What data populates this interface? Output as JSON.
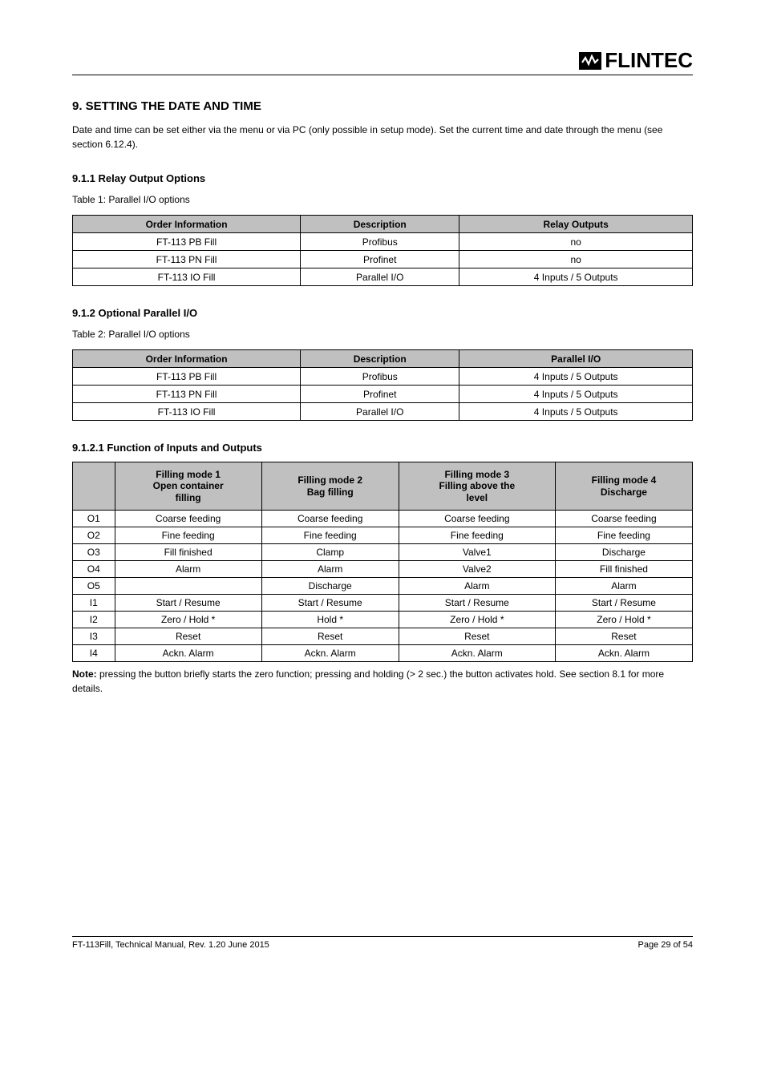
{
  "logo": {
    "text": "FLINTEC"
  },
  "section1": {
    "heading": "9. SETTING THE DATE AND TIME",
    "body": "Date and time can be set either via the menu or via PC (only possible in setup mode). Set the current time and date through the menu (see section 6.12.4)."
  },
  "section2": {
    "heading": "9.1.1 Relay Output Options",
    "body": "Table 1: Parallel I/O options",
    "table": {
      "headers": [
        "Order Information",
        "Description",
        "Relay Outputs"
      ],
      "rows": [
        [
          "FT-113 PB Fill",
          "Profibus",
          "no"
        ],
        [
          "FT-113 PN Fill",
          "Profinet",
          "no"
        ],
        [
          "FT-113 IO Fill",
          "Parallel I/O",
          "4 Inputs / 5 Outputs"
        ]
      ]
    }
  },
  "section3": {
    "heading": "9.1.2 Optional Parallel I/O",
    "body": "Table 2: Parallel I/O options",
    "table": {
      "headers": [
        "Order Information",
        "Description",
        "Parallel I/O"
      ],
      "rows": [
        [
          "FT-113 PB Fill",
          "Profibus",
          "4 Inputs / 5 Outputs"
        ],
        [
          "FT-113 PN Fill",
          "Profinet",
          "4 Inputs / 5 Outputs"
        ],
        [
          "FT-113 IO Fill",
          "Parallel I/O",
          "4 Inputs / 5 Outputs"
        ]
      ]
    }
  },
  "subsection": {
    "heading": "9.1.2.1 Function of Inputs and Outputs",
    "table": {
      "headers": [
        "",
        {
          "line1": "Filling mode 1",
          "line2": "Open container",
          "line3": "filling"
        },
        {
          "line1": "Filling mode 2",
          "line2": "Bag filling"
        },
        {
          "line1": "Filling mode 3",
          "line2": "Filling above the",
          "line3": "level"
        },
        {
          "line1": "Filling mode 4",
          "line2": "Discharge"
        }
      ],
      "rows": [
        [
          "O1",
          "Coarse feeding",
          "Coarse feeding",
          "Coarse feeding",
          "Coarse feeding"
        ],
        [
          "O2",
          "Fine feeding",
          "Fine feeding",
          "Fine feeding",
          "Fine feeding"
        ],
        [
          "O3",
          "Fill finished",
          "Clamp",
          "Valve1",
          "Discharge"
        ],
        [
          "O4",
          "Alarm",
          "Alarm",
          "Valve2",
          "Fill finished"
        ],
        [
          "O5",
          "",
          "Discharge",
          "Alarm",
          "Alarm"
        ],
        [
          "I1",
          "Start / Resume",
          "Start / Resume",
          "Start / Resume",
          "Start / Resume"
        ],
        [
          "I2",
          "Zero / Hold *",
          "Hold *",
          "Zero / Hold *",
          "Zero / Hold *"
        ],
        [
          "I3",
          "Reset",
          "Reset",
          "Reset",
          "Reset"
        ],
        [
          "I4",
          "Ackn. Alarm",
          "Ackn. Alarm",
          "Ackn. Alarm",
          "Ackn. Alarm"
        ]
      ]
    },
    "note": {
      "label": "Note:",
      "body": " pressing the button briefly starts the zero function; pressing and holding (> 2 sec.) the button activates hold. See section 8.1 for more details."
    }
  },
  "footer": {
    "left": "FT-113Fill, Technical Manual, Rev. 1.20 June 2015",
    "right": "Page 29 of 54"
  }
}
